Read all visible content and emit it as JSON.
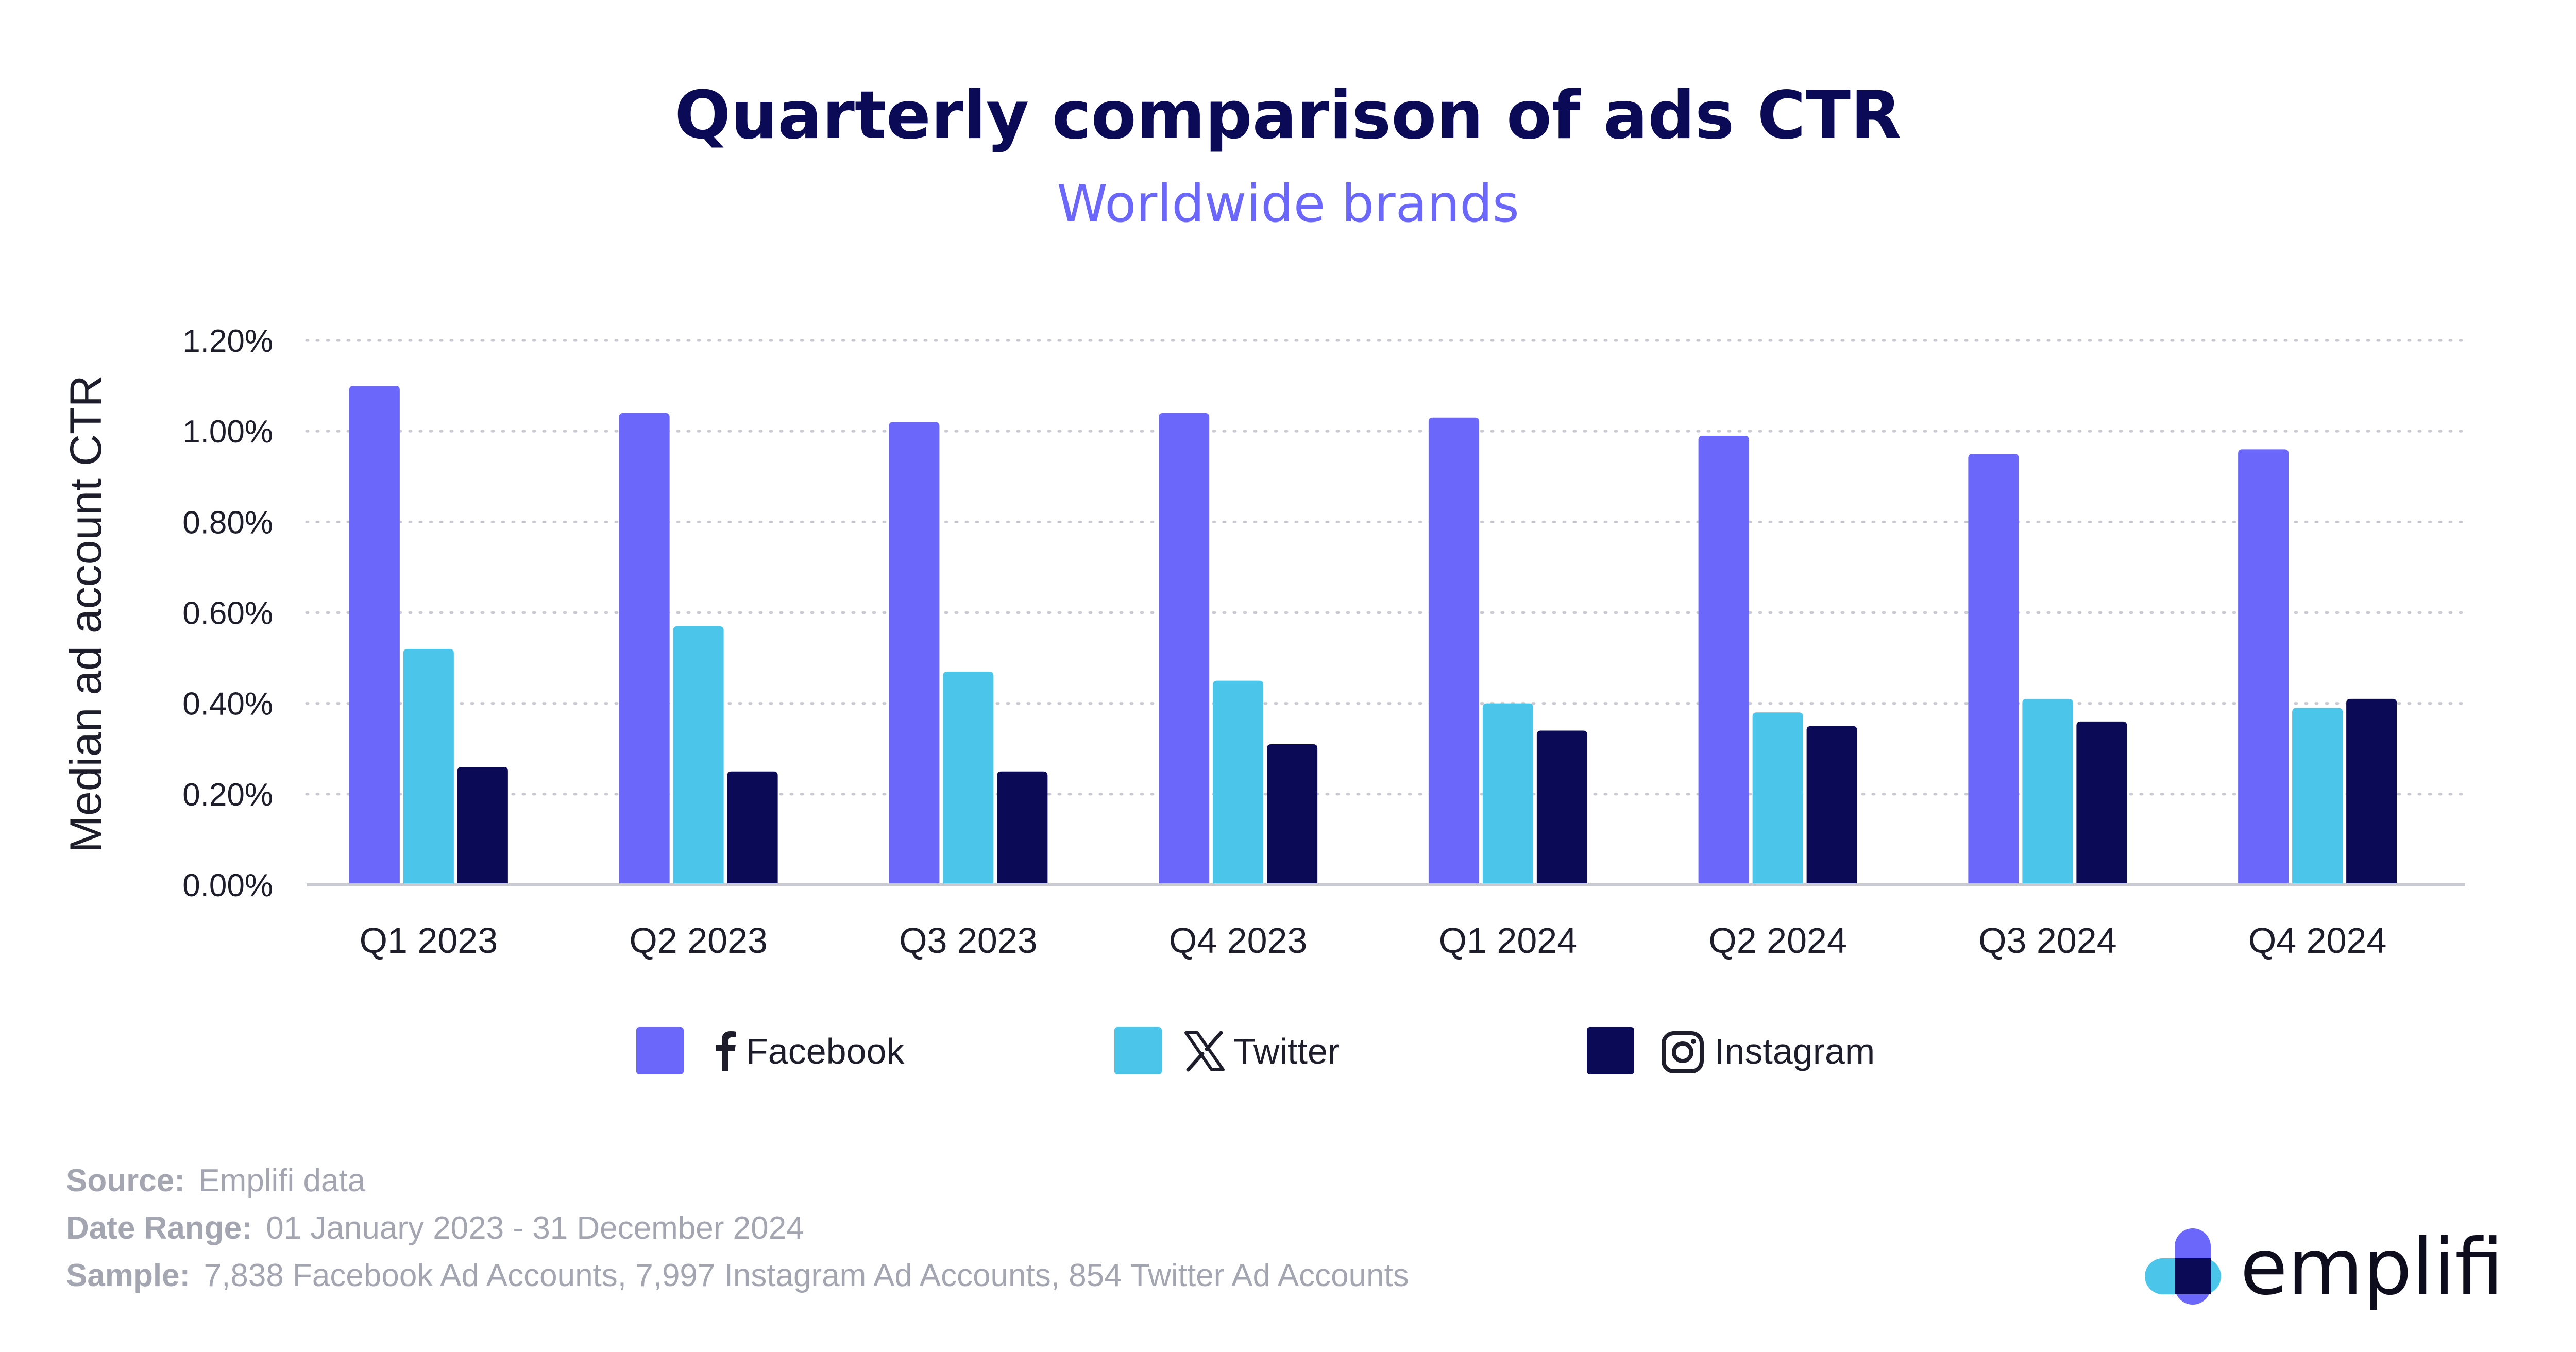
{
  "chart_data": {
    "type": "bar",
    "title": "Quarterly comparison of ads CTR",
    "subtitle": "Worldwide brands",
    "ylabel": "Median ad account CTR",
    "xlabel": "",
    "ylim": [
      0,
      1.2
    ],
    "yticks": [
      "0.00%",
      "0.20%",
      "0.40%",
      "0.60%",
      "0.80%",
      "1.00%",
      "1.20%"
    ],
    "grid": true,
    "legend_position": "bottom",
    "categories": [
      "Q1 2023",
      "Q2 2023",
      "Q3 2023",
      "Q4 2023",
      "Q1 2024",
      "Q2 2024",
      "Q3 2024",
      "Q4 2024"
    ],
    "series": [
      {
        "name": "Facebook",
        "color": "#6b67fb",
        "icon": "facebook-icon",
        "values": [
          1.1,
          1.04,
          1.02,
          1.04,
          1.03,
          0.99,
          0.95,
          0.96
        ]
      },
      {
        "name": "Twitter",
        "color": "#4bc6ea",
        "icon": "x-twitter-icon",
        "values": [
          0.52,
          0.57,
          0.47,
          0.45,
          0.4,
          0.38,
          0.41,
          0.39
        ]
      },
      {
        "name": "Instagram",
        "color": "#0b0a57",
        "icon": "instagram-icon",
        "values": [
          0.26,
          0.25,
          0.25,
          0.31,
          0.34,
          0.35,
          0.36,
          0.41
        ]
      }
    ]
  },
  "footer": {
    "source_label": "Source:",
    "source_value": "Emplifi data",
    "date_range_label": "Date Range:",
    "date_range_value": "01 January 2023 - 31 December 2024",
    "sample_label": "Sample:",
    "sample_value": "7,838 Facebook Ad Accounts, 7,997 Instagram Ad Accounts, 854 Twitter Ad Accounts"
  },
  "logo": {
    "text": "emplifi",
    "colors": {
      "light": "#4bc6ea",
      "purple": "#6b67fb",
      "dark": "#0b0a57"
    }
  }
}
